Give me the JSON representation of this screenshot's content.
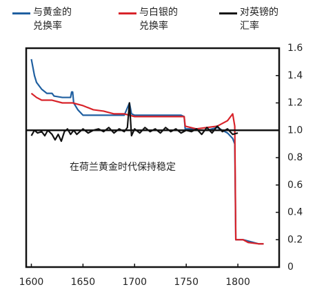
{
  "chart_data": {
    "type": "line",
    "annotation": "在荷兰黄金时代保持稳定",
    "reference_line": 1,
    "xlim": [
      1595,
      1840
    ],
    "xticks": [
      1600,
      1650,
      1700,
      1750,
      1800
    ],
    "ylim": [
      0,
      1.6
    ],
    "yticks": [
      0,
      0.2,
      0.4,
      0.6,
      0.8,
      {
        "value": 1,
        "label": "1.0"
      },
      1.2,
      1.4,
      1.6
    ],
    "series": [
      {
        "name": "与黄金的\n兑换率",
        "color": "#1f5fa0",
        "x": [
          1600,
          1603,
          1605,
          1610,
          1615,
          1620,
          1622,
          1630,
          1638,
          1639,
          1640,
          1641,
          1645,
          1650,
          1660,
          1670,
          1680,
          1690,
          1695,
          1697,
          1700,
          1720,
          1745,
          1748,
          1749,
          1755,
          1760,
          1770,
          1780,
          1785,
          1790,
          1795,
          1797,
          1798,
          1805,
          1810,
          1815,
          1820,
          1825
        ],
        "values": [
          1.52,
          1.4,
          1.35,
          1.3,
          1.27,
          1.27,
          1.25,
          1.24,
          1.24,
          1.28,
          1.28,
          1.2,
          1.15,
          1.11,
          1.11,
          1.11,
          1.11,
          1.11,
          1.2,
          1.12,
          1.11,
          1.11,
          1.11,
          1.1,
          1.01,
          1.01,
          1.0,
          1.0,
          1.02,
          1.0,
          0.98,
          0.94,
          0.9,
          0.2,
          0.2,
          0.19,
          0.18,
          0.17,
          0.17
        ]
      },
      {
        "name": "与白银的\n兑换率",
        "color": "#d8232a",
        "x": [
          1600,
          1605,
          1610,
          1620,
          1630,
          1640,
          1650,
          1660,
          1670,
          1680,
          1690,
          1700,
          1720,
          1748,
          1749,
          1760,
          1770,
          1780,
          1790,
          1795,
          1797,
          1798,
          1805,
          1810,
          1820,
          1825
        ],
        "values": [
          1.27,
          1.24,
          1.22,
          1.22,
          1.2,
          1.2,
          1.18,
          1.15,
          1.14,
          1.12,
          1.12,
          1.1,
          1.1,
          1.1,
          1.03,
          1.01,
          1.02,
          1.03,
          1.07,
          1.12,
          1.03,
          0.2,
          0.2,
          0.18,
          0.17,
          0.17
        ]
      },
      {
        "name": "对英镑的\n汇率",
        "color": "#111111",
        "x": [
          1600,
          1603,
          1606,
          1610,
          1613,
          1616,
          1620,
          1623,
          1626,
          1629,
          1632,
          1635,
          1638,
          1641,
          1644,
          1647,
          1650,
          1655,
          1660,
          1665,
          1670,
          1675,
          1680,
          1685,
          1690,
          1693,
          1695,
          1697,
          1700,
          1705,
          1710,
          1715,
          1720,
          1725,
          1730,
          1735,
          1740,
          1745,
          1750,
          1755,
          1760,
          1765,
          1770,
          1775,
          1780,
          1785,
          1790,
          1795,
          1800
        ],
        "values": [
          0.96,
          1.0,
          0.98,
          0.99,
          0.96,
          1.0,
          0.97,
          0.93,
          0.97,
          0.92,
          0.99,
          1.01,
          0.97,
          1.0,
          0.97,
          0.99,
          1.01,
          0.98,
          1.0,
          1.01,
          0.99,
          1.02,
          0.98,
          1.01,
          0.99,
          1.02,
          1.2,
          0.96,
          1.01,
          0.98,
          1.02,
          0.99,
          1.01,
          0.98,
          1.02,
          0.99,
          1.01,
          0.98,
          1.0,
          0.99,
          1.01,
          0.97,
          1.02,
          0.98,
          1.03,
          0.99,
          1.01,
          0.97,
          0.98
        ]
      }
    ]
  }
}
